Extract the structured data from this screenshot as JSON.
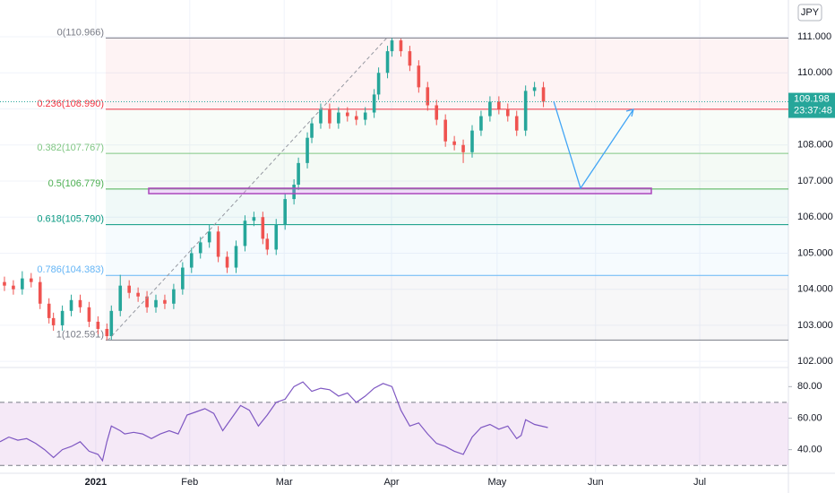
{
  "chart_data": [
    {
      "type": "candlestick",
      "currency": "JPY",
      "last_price": 109.198,
      "countdown": "23:37:48",
      "xlim": [
        0,
        177
      ],
      "ylim": [
        101.83,
        112.02
      ],
      "up_color": "#26a69a",
      "down_color": "#ef5350",
      "grid": true,
      "xticks": [
        {
          "value": 21.5,
          "label": "2021"
        },
        {
          "value": 42.6,
          "label": "Feb"
        },
        {
          "value": 63.8,
          "label": "Mar"
        },
        {
          "value": 87.9,
          "label": "Apr"
        },
        {
          "value": 111.6,
          "label": "May"
        },
        {
          "value": 133.7,
          "label": "Jun"
        },
        {
          "value": 157.1,
          "label": "Jul"
        }
      ],
      "yticks": [
        {
          "value": 102,
          "label": "102.000"
        },
        {
          "value": 103,
          "label": "103.000"
        },
        {
          "value": 104,
          "label": "104.000"
        },
        {
          "value": 105,
          "label": "105.000"
        },
        {
          "value": 106,
          "label": "106.000"
        },
        {
          "value": 107,
          "label": "107.000"
        },
        {
          "value": 108,
          "label": "108.000"
        },
        {
          "value": 109,
          "label": "109.000"
        },
        {
          "value": 110,
          "label": "110.000"
        },
        {
          "value": 111,
          "label": "111.000"
        }
      ],
      "fib_levels": [
        {
          "label": "0(110.966)",
          "value": 110.966,
          "color": "#787b86"
        },
        {
          "label": "0.236(108.990)",
          "value": 108.99,
          "color": "#f23645"
        },
        {
          "label": "0.382(107.767)",
          "value": 107.767,
          "color": "#81c784"
        },
        {
          "label": "0.5(106.779)",
          "value": 106.779,
          "color": "#4caf50"
        },
        {
          "label": "0.618(105.790)",
          "value": 105.79,
          "color": "#089981"
        },
        {
          "label": "0.786(104.383)",
          "value": 104.383,
          "color": "#64b5f6"
        },
        {
          "label": "1(102.591)",
          "value": 102.591,
          "color": "#787b86"
        }
      ],
      "x": [
        1,
        3,
        5,
        7,
        9,
        11,
        12,
        14,
        16,
        18,
        20,
        22,
        24,
        25,
        27,
        29,
        31,
        33,
        35,
        37,
        39,
        41,
        43,
        45,
        47,
        49,
        51,
        53,
        55,
        57,
        59,
        60,
        62,
        64,
        66,
        67,
        69,
        70,
        72,
        74,
        76,
        78,
        80,
        82,
        84,
        85,
        87,
        88,
        90,
        92,
        94,
        96,
        98,
        100,
        102,
        104,
        106,
        108,
        110,
        112,
        114,
        116,
        118,
        120,
        122
      ],
      "open": [
        104.2,
        104.1,
        104.0,
        104.3,
        104.2,
        103.6,
        103.2,
        103.0,
        103.4,
        103.7,
        103.5,
        103.1,
        102.9,
        102.7,
        103.4,
        104.1,
        103.9,
        103.8,
        103.5,
        103.7,
        103.6,
        104.0,
        104.6,
        105.0,
        105.3,
        105.6,
        104.9,
        104.6,
        105.2,
        105.9,
        106.0,
        105.4,
        105.1,
        105.8,
        106.5,
        106.9,
        107.5,
        108.2,
        108.6,
        109.0,
        108.6,
        108.9,
        108.8,
        108.7,
        108.9,
        109.4,
        110.0,
        110.6,
        110.9,
        110.6,
        110.2,
        109.6,
        109.1,
        108.7,
        108.1,
        108.0,
        107.8,
        108.4,
        108.8,
        109.2,
        109.0,
        108.8,
        108.4,
        109.5,
        109.6
      ],
      "high": [
        104.35,
        104.25,
        104.5,
        104.45,
        104.35,
        103.75,
        103.35,
        103.55,
        103.85,
        103.85,
        103.65,
        103.25,
        103.05,
        103.55,
        104.4,
        104.25,
        104.05,
        103.95,
        103.85,
        103.85,
        104.15,
        104.75,
        105.15,
        105.45,
        105.8,
        105.75,
        105.05,
        105.35,
        106.05,
        106.15,
        106.15,
        105.55,
        105.95,
        106.65,
        107.05,
        107.65,
        108.35,
        108.75,
        109.15,
        109.15,
        109.05,
        109.05,
        108.95,
        109.05,
        109.55,
        110.15,
        110.75,
        110.966,
        110.95,
        110.75,
        110.35,
        109.75,
        109.25,
        108.85,
        108.25,
        108.15,
        108.55,
        108.95,
        109.35,
        109.35,
        109.15,
        108.95,
        109.65,
        109.75,
        109.75
      ],
      "low": [
        103.95,
        103.85,
        103.85,
        104.05,
        103.45,
        103.05,
        102.85,
        102.85,
        103.25,
        103.35,
        102.95,
        102.75,
        102.59,
        102.6,
        103.25,
        103.75,
        103.65,
        103.35,
        103.35,
        103.45,
        103.45,
        103.85,
        104.45,
        104.85,
        105.15,
        104.75,
        104.45,
        104.45,
        105.05,
        105.75,
        105.25,
        104.95,
        104.95,
        105.65,
        106.35,
        106.75,
        107.35,
        108.05,
        108.45,
        108.45,
        108.45,
        108.65,
        108.55,
        108.55,
        108.75,
        109.25,
        109.85,
        110.45,
        110.45,
        110.05,
        109.45,
        108.95,
        108.55,
        107.95,
        107.85,
        107.5,
        107.65,
        108.25,
        108.65,
        108.85,
        108.65,
        108.25,
        108.25,
        109.35,
        109.05
      ],
      "close": [
        104.1,
        104.0,
        104.3,
        104.2,
        103.6,
        103.2,
        103.0,
        103.4,
        103.7,
        103.5,
        103.1,
        102.9,
        102.7,
        103.4,
        104.1,
        103.9,
        103.8,
        103.5,
        103.7,
        103.6,
        104.0,
        104.6,
        105.0,
        105.3,
        105.6,
        104.9,
        104.6,
        105.2,
        105.9,
        106.0,
        105.4,
        105.1,
        105.8,
        106.5,
        106.9,
        107.5,
        108.2,
        108.6,
        109.0,
        108.6,
        108.9,
        108.8,
        108.7,
        108.9,
        109.4,
        110.0,
        110.6,
        110.9,
        110.6,
        110.2,
        109.6,
        109.1,
        108.7,
        108.1,
        108.0,
        107.8,
        108.4,
        108.8,
        109.2,
        109.0,
        108.8,
        108.4,
        109.5,
        109.6,
        109.198
      ]
    },
    {
      "type": "line",
      "xlim": [
        0,
        177
      ],
      "ylim": [
        25,
        91
      ],
      "band": [
        30,
        70
      ],
      "color": "#7e57c2",
      "yticks": [
        {
          "value": 80,
          "label": "80.00"
        },
        {
          "value": 60,
          "label": "60.00"
        },
        {
          "value": 40,
          "label": "40.00"
        }
      ],
      "x": [
        0,
        2,
        4,
        6,
        8,
        10,
        12,
        14,
        16,
        18,
        20,
        22,
        23,
        24,
        25,
        27,
        28,
        30,
        32,
        34,
        36,
        38,
        40,
        42,
        44,
        46,
        48,
        50,
        52,
        54,
        56,
        58,
        60,
        62,
        64,
        66,
        68,
        70,
        72,
        74,
        76,
        78,
        80,
        82,
        84,
        86,
        88,
        90,
        92,
        94,
        96,
        98,
        100,
        102,
        104,
        106,
        108,
        110,
        112,
        114,
        116,
        117,
        118,
        120,
        123
      ],
      "values": [
        45,
        48,
        46,
        47,
        44,
        40,
        35,
        40,
        42,
        45,
        39,
        37,
        33,
        45,
        55,
        52,
        50,
        51,
        50,
        47,
        50,
        52,
        50,
        62,
        64,
        66,
        63,
        52,
        60,
        68,
        65,
        55,
        62,
        70,
        72,
        80,
        83,
        77,
        79,
        78,
        74,
        76,
        70,
        74,
        79,
        82,
        80,
        65,
        55,
        57,
        50,
        44,
        42,
        39,
        37,
        48,
        54,
        56,
        53,
        55,
        47,
        49,
        59,
        56,
        54
      ]
    }
  ]
}
